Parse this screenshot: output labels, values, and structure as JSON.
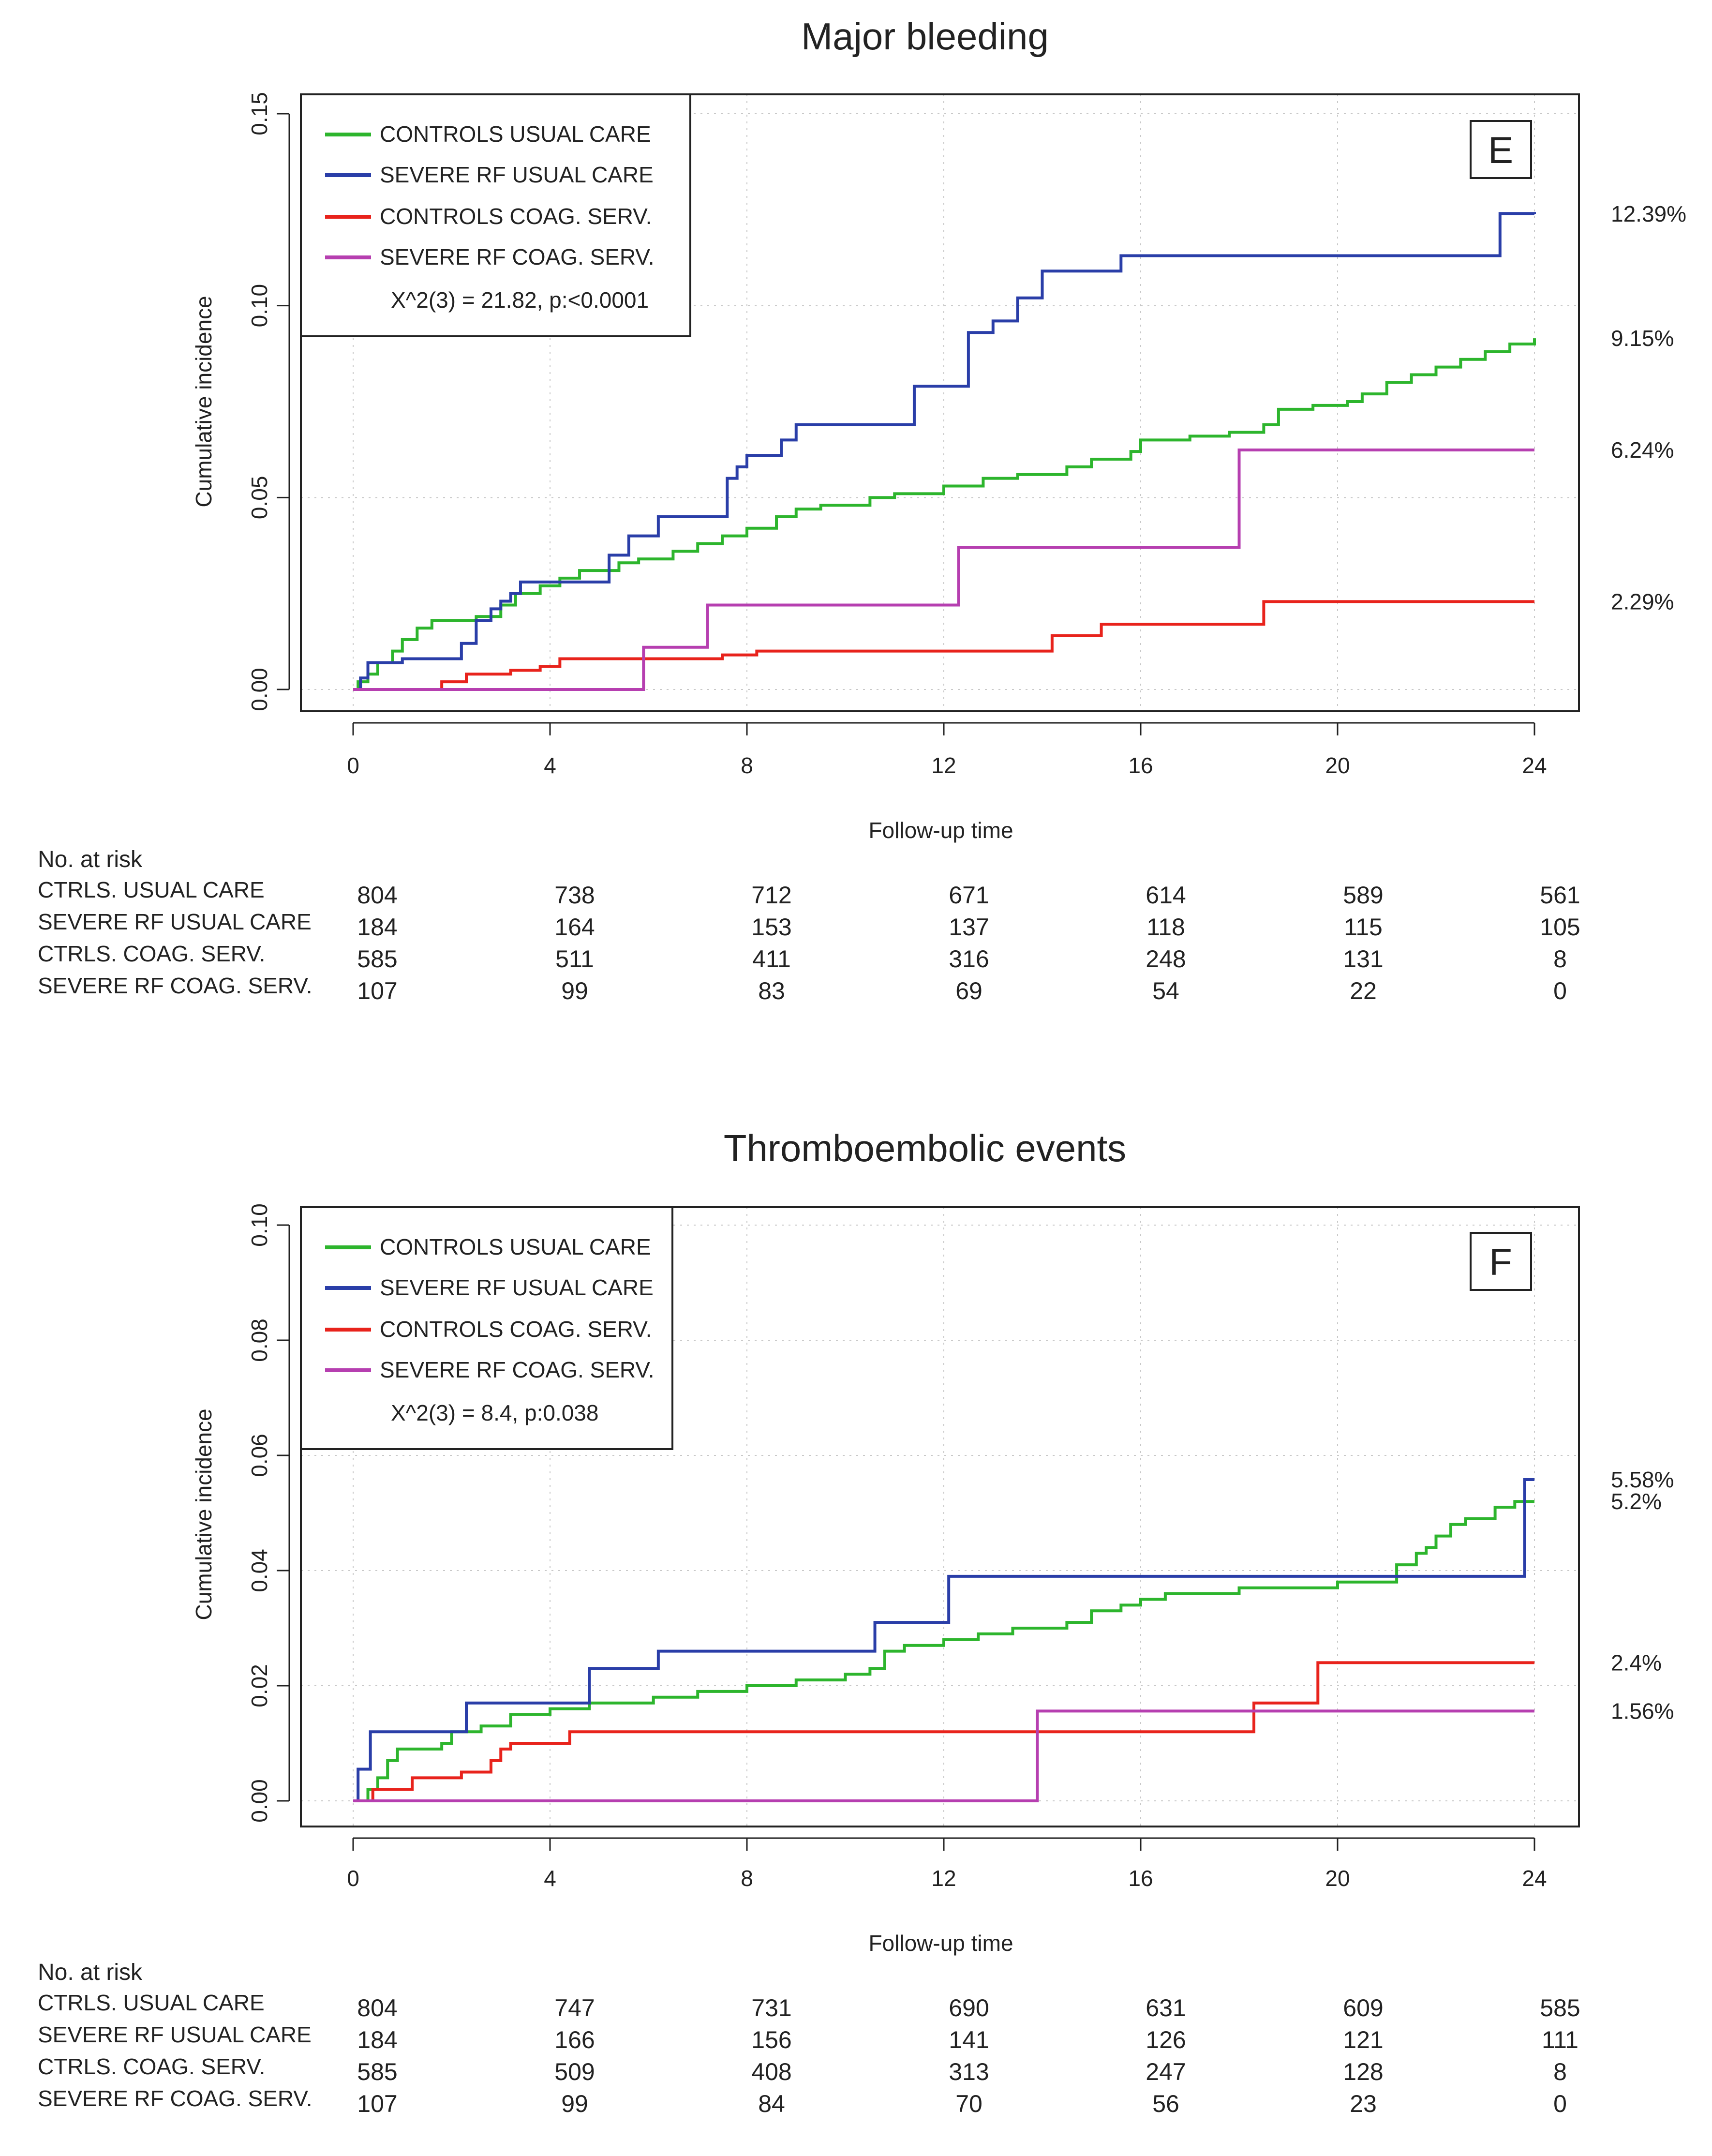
{
  "chart_data": [
    {
      "type": "line",
      "title": "Major bleeding",
      "panel_letter": "E",
      "xlabel": "Follow-up time",
      "ylabel": "Cumulative incidence",
      "xlim": [
        0,
        24
      ],
      "ylim": [
        0,
        0.15
      ],
      "x_ticks": [
        "0",
        "4",
        "8",
        "12",
        "16",
        "20",
        "24"
      ],
      "y_ticks": [
        "0.00",
        "0.05",
        "0.10",
        "0.15"
      ],
      "grid": true,
      "legend_position": "top-left",
      "statistic": "X^2(3) = 21.82, p:<0.0001",
      "series": [
        {
          "name": "CONTROLS USUAL CARE",
          "color": "#2db52d",
          "end_label": "9.15%",
          "points": [
            [
              0,
              0
            ],
            [
              0.1,
              0.002
            ],
            [
              0.3,
              0.004
            ],
            [
              0.5,
              0.007
            ],
            [
              0.8,
              0.01
            ],
            [
              1.0,
              0.013
            ],
            [
              1.3,
              0.016
            ],
            [
              1.6,
              0.018
            ],
            [
              2.5,
              0.019
            ],
            [
              3.0,
              0.022
            ],
            [
              3.3,
              0.025
            ],
            [
              3.8,
              0.027
            ],
            [
              4.2,
              0.029
            ],
            [
              4.6,
              0.031
            ],
            [
              5.4,
              0.033
            ],
            [
              5.8,
              0.034
            ],
            [
              6.5,
              0.036
            ],
            [
              7.0,
              0.038
            ],
            [
              7.5,
              0.04
            ],
            [
              8.0,
              0.042
            ],
            [
              8.6,
              0.045
            ],
            [
              9.0,
              0.047
            ],
            [
              9.5,
              0.048
            ],
            [
              10.5,
              0.05
            ],
            [
              11.0,
              0.051
            ],
            [
              12.0,
              0.053
            ],
            [
              12.8,
              0.055
            ],
            [
              13.5,
              0.056
            ],
            [
              14.5,
              0.058
            ],
            [
              15.0,
              0.06
            ],
            [
              15.8,
              0.062
            ],
            [
              16.0,
              0.065
            ],
            [
              17.0,
              0.066
            ],
            [
              17.8,
              0.067
            ],
            [
              18.5,
              0.069
            ],
            [
              18.8,
              0.073
            ],
            [
              19.5,
              0.074
            ],
            [
              20.2,
              0.075
            ],
            [
              20.5,
              0.077
            ],
            [
              21.0,
              0.08
            ],
            [
              21.5,
              0.082
            ],
            [
              22.0,
              0.084
            ],
            [
              22.5,
              0.086
            ],
            [
              23.0,
              0.088
            ],
            [
              23.5,
              0.09
            ],
            [
              24.0,
              0.0915
            ]
          ]
        },
        {
          "name": "SEVERE RF USUAL CARE",
          "color": "#2a3ea8",
          "end_label": "12.39%",
          "points": [
            [
              0,
              0
            ],
            [
              0.15,
              0.003
            ],
            [
              0.3,
              0.007
            ],
            [
              1.0,
              0.008
            ],
            [
              2.2,
              0.012
            ],
            [
              2.5,
              0.018
            ],
            [
              2.8,
              0.021
            ],
            [
              3.0,
              0.023
            ],
            [
              3.2,
              0.025
            ],
            [
              3.4,
              0.028
            ],
            [
              5.2,
              0.035
            ],
            [
              5.6,
              0.04
            ],
            [
              6.2,
              0.045
            ],
            [
              7.6,
              0.055
            ],
            [
              7.8,
              0.058
            ],
            [
              8.0,
              0.061
            ],
            [
              8.7,
              0.065
            ],
            [
              9.0,
              0.069
            ],
            [
              11.4,
              0.079
            ],
            [
              12.5,
              0.093
            ],
            [
              13.0,
              0.096
            ],
            [
              13.5,
              0.102
            ],
            [
              14.0,
              0.109
            ],
            [
              15.6,
              0.113
            ],
            [
              23.3,
              0.124
            ],
            [
              24.0,
              0.1239
            ]
          ]
        },
        {
          "name": "CONTROLS COAG. SERV.",
          "color": "#e8231c",
          "end_label": "2.29%",
          "points": [
            [
              0,
              0
            ],
            [
              1.8,
              0.002
            ],
            [
              2.3,
              0.004
            ],
            [
              3.2,
              0.005
            ],
            [
              3.8,
              0.006
            ],
            [
              4.2,
              0.008
            ],
            [
              7.5,
              0.009
            ],
            [
              8.2,
              0.01
            ],
            [
              14.2,
              0.014
            ],
            [
              15.2,
              0.017
            ],
            [
              18.5,
              0.0229
            ],
            [
              24.0,
              0.0229
            ]
          ]
        },
        {
          "name": "SEVERE RF COAG. SERV.",
          "color": "#b63fb0",
          "end_label": "6.24%",
          "points": [
            [
              0,
              0
            ],
            [
              5.9,
              0.011
            ],
            [
              7.2,
              0.022
            ],
            [
              12.3,
              0.037
            ],
            [
              18.0,
              0.0624
            ],
            [
              24.0,
              0.0624
            ]
          ]
        }
      ],
      "risk_table": {
        "heading": "No. at risk",
        "columns": [
          "0",
          "4",
          "8",
          "12",
          "16",
          "20",
          "24"
        ],
        "rows": [
          {
            "name": "CTRLS. USUAL CARE",
            "values": [
              "804",
              "738",
              "712",
              "671",
              "614",
              "589",
              "561"
            ]
          },
          {
            "name": "SEVERE RF USUAL CARE",
            "values": [
              "184",
              "164",
              "153",
              "137",
              "118",
              "115",
              "105"
            ]
          },
          {
            "name": "CTRLS. COAG. SERV.",
            "values": [
              "585",
              "511",
              "411",
              "316",
              "248",
              "131",
              "8"
            ]
          },
          {
            "name": "SEVERE RF COAG. SERV.",
            "values": [
              "107",
              "99",
              "83",
              "69",
              "54",
              "22",
              "0"
            ]
          }
        ]
      }
    },
    {
      "type": "line",
      "title": "Thromboembolic  events",
      "panel_letter": "F",
      "xlabel": "Follow-up time",
      "ylabel": "Cumulative incidence",
      "xlim": [
        0,
        24
      ],
      "ylim": [
        0,
        0.1
      ],
      "x_ticks": [
        "0",
        "4",
        "8",
        "12",
        "16",
        "20",
        "24"
      ],
      "y_ticks": [
        "0.00",
        "0.02",
        "0.04",
        "0.06",
        "0.08",
        "0.10"
      ],
      "grid": true,
      "legend_position": "top-left",
      "statistic": "X^2(3) = 8.4, p:0.038",
      "series": [
        {
          "name": "CONTROLS USUAL CARE",
          "color": "#2db52d",
          "end_label": "5.2%",
          "points": [
            [
              0,
              0
            ],
            [
              0.3,
              0.002
            ],
            [
              0.5,
              0.004
            ],
            [
              0.7,
              0.007
            ],
            [
              0.9,
              0.009
            ],
            [
              1.8,
              0.01
            ],
            [
              2.0,
              0.012
            ],
            [
              2.6,
              0.013
            ],
            [
              3.2,
              0.015
            ],
            [
              4.0,
              0.016
            ],
            [
              4.8,
              0.017
            ],
            [
              6.1,
              0.018
            ],
            [
              7.0,
              0.019
            ],
            [
              8.0,
              0.02
            ],
            [
              9.0,
              0.021
            ],
            [
              10.0,
              0.022
            ],
            [
              10.5,
              0.023
            ],
            [
              10.8,
              0.026
            ],
            [
              11.2,
              0.027
            ],
            [
              12.0,
              0.028
            ],
            [
              12.7,
              0.029
            ],
            [
              13.4,
              0.03
            ],
            [
              14.5,
              0.031
            ],
            [
              15.0,
              0.033
            ],
            [
              15.6,
              0.034
            ],
            [
              16.0,
              0.035
            ],
            [
              16.5,
              0.036
            ],
            [
              18.0,
              0.037
            ],
            [
              19.0,
              0.037
            ],
            [
              20.0,
              0.038
            ],
            [
              21.2,
              0.041
            ],
            [
              21.6,
              0.043
            ],
            [
              21.8,
              0.044
            ],
            [
              22.0,
              0.046
            ],
            [
              22.3,
              0.048
            ],
            [
              22.6,
              0.049
            ],
            [
              23.2,
              0.051
            ],
            [
              23.6,
              0.052
            ],
            [
              24.0,
              0.052
            ]
          ]
        },
        {
          "name": "SEVERE RF USUAL CARE",
          "color": "#2a3ea8",
          "end_label": "5.58%",
          "points": [
            [
              0,
              0
            ],
            [
              0.1,
              0.0055
            ],
            [
              0.35,
              0.012
            ],
            [
              2.3,
              0.017
            ],
            [
              4.8,
              0.023
            ],
            [
              6.2,
              0.026
            ],
            [
              10.6,
              0.031
            ],
            [
              12.1,
              0.039
            ],
            [
              23.8,
              0.0558
            ],
            [
              24.0,
              0.0558
            ]
          ]
        },
        {
          "name": "CONTROLS COAG. SERV.",
          "color": "#e8231c",
          "end_label": "2.4%",
          "points": [
            [
              0,
              0
            ],
            [
              0.4,
              0.002
            ],
            [
              1.2,
              0.004
            ],
            [
              2.2,
              0.005
            ],
            [
              2.8,
              0.007
            ],
            [
              3.0,
              0.009
            ],
            [
              3.2,
              0.01
            ],
            [
              4.4,
              0.012
            ],
            [
              18.3,
              0.017
            ],
            [
              19.6,
              0.024
            ],
            [
              24.0,
              0.024
            ]
          ]
        },
        {
          "name": "SEVERE RF COAG. SERV.",
          "color": "#b63fb0",
          "end_label": "1.56%",
          "points": [
            [
              0,
              0
            ],
            [
              13.9,
              0.0156
            ],
            [
              24.0,
              0.0156
            ]
          ]
        }
      ],
      "risk_table": {
        "heading": "No. at risk",
        "columns": [
          "0",
          "4",
          "8",
          "12",
          "16",
          "20",
          "24"
        ],
        "rows": [
          {
            "name": "CTRLS. USUAL CARE",
            "values": [
              "804",
              "747",
              "731",
              "690",
              "631",
              "609",
              "585"
            ]
          },
          {
            "name": "SEVERE RF USUAL CARE",
            "values": [
              "184",
              "166",
              "156",
              "141",
              "126",
              "121",
              "111"
            ]
          },
          {
            "name": "CTRLS. COAG. SERV.",
            "values": [
              "585",
              "509",
              "408",
              "313",
              "247",
              "128",
              "8"
            ]
          },
          {
            "name": "SEVERE RF COAG. SERV.",
            "values": [
              "107",
              "99",
              "84",
              "70",
              "56",
              "23",
              "0"
            ]
          }
        ]
      }
    }
  ]
}
